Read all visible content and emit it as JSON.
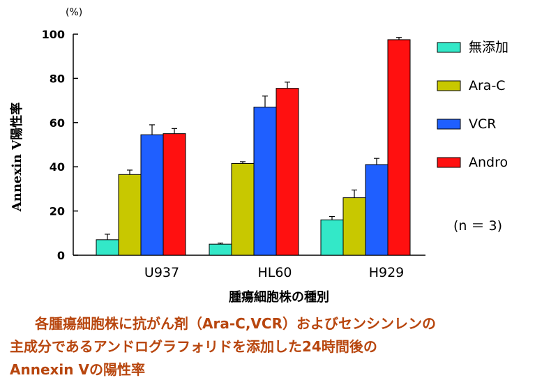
{
  "chart_data": {
    "type": "bar",
    "unit_label": "(%)",
    "ylabel": "Annexin V陽性率",
    "xlabel": "腫瘍細胞株の種別",
    "ylim": [
      0,
      100
    ],
    "yticks": [
      0,
      20,
      40,
      60,
      80,
      100
    ],
    "grid": false,
    "legend_position": "right",
    "categories": [
      "U937",
      "HL60",
      "H929"
    ],
    "series": [
      {
        "name": "無添加",
        "color": "#33e8c8",
        "values": [
          7,
          5,
          16
        ],
        "errors": [
          2.5,
          0.5,
          1.5
        ]
      },
      {
        "name": "Ara-C",
        "color": "#c8c800",
        "values": [
          36.5,
          41.5,
          26
        ],
        "errors": [
          2,
          0.8,
          3.5
        ]
      },
      {
        "name": "VCR",
        "color": "#1f5fff",
        "values": [
          54.5,
          67,
          41
        ],
        "errors": [
          4.5,
          5,
          2.8
        ]
      },
      {
        "name": "Andro",
        "color": "#ff1010",
        "values": [
          55,
          75.5,
          97.5
        ],
        "errors": [
          2.3,
          2.8,
          1
        ]
      }
    ],
    "annotation": "(n ＝ 3)"
  },
  "caption": {
    "lines": [
      "各腫瘍細胞株に抗がん剤（Ara-C,VCR）およびセンシンレンの",
      "主成分であるアンドログラフォリドを添加した24時間後の",
      "Annexin Vの陽性率"
    ]
  }
}
